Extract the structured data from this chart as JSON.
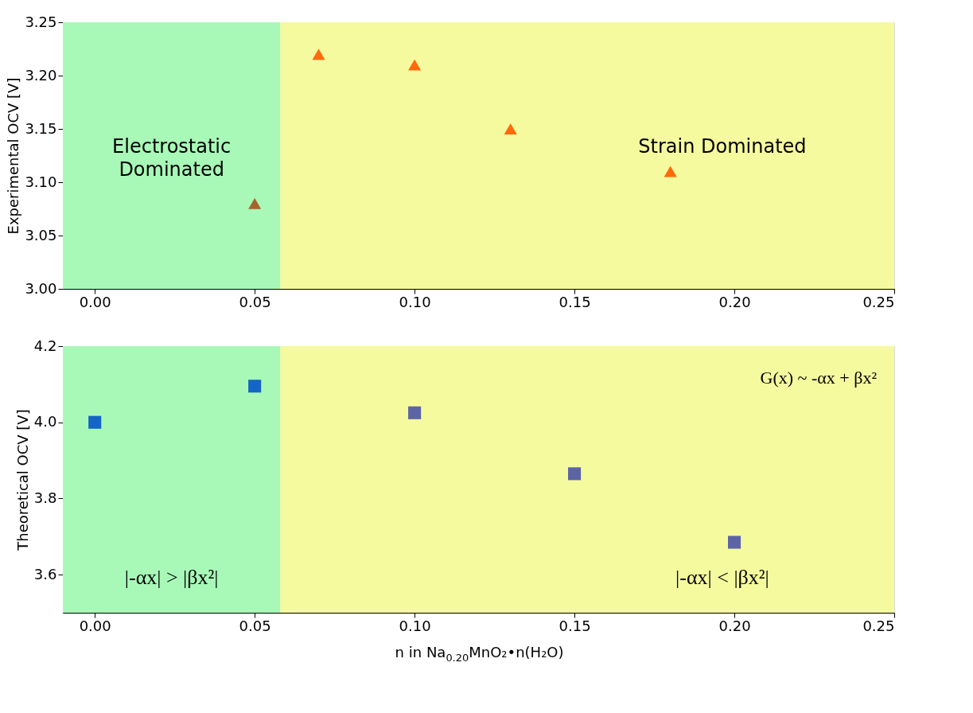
{
  "chart_data": [
    {
      "type": "scatter",
      "ylabel": "Experimental OCV [V]",
      "xlim": [
        -0.01,
        0.25
      ],
      "ylim": [
        3.0,
        3.25
      ],
      "xticks": [
        {
          "value": 0,
          "label": "0.00"
        },
        {
          "value": 0.05,
          "label": "0.05"
        },
        {
          "value": 0.1,
          "label": "0.10"
        },
        {
          "value": 0.15,
          "label": "0.15"
        },
        {
          "value": 0.2,
          "label": "0.20"
        },
        {
          "value": 0.25,
          "label": "0.25"
        }
      ],
      "yticks": [
        {
          "value": 3.0,
          "label": "3.00"
        },
        {
          "value": 3.05,
          "label": "3.05"
        },
        {
          "value": 3.1,
          "label": "3.10"
        },
        {
          "value": 3.15,
          "label": "3.15"
        },
        {
          "value": 3.2,
          "label": "3.20"
        },
        {
          "value": 3.25,
          "label": "3.25"
        }
      ],
      "marker": "triangle",
      "grid": false,
      "legend": false,
      "bands": [
        {
          "axis": "x",
          "from": -0.01,
          "to": 0.058,
          "label": "Electrostatic Dominated",
          "color": "#a8f9b8"
        },
        {
          "axis": "x",
          "from": 0.058,
          "to": 0.25,
          "label": "Strain Dominated",
          "color": "#f5fa9f"
        }
      ],
      "series": [
        {
          "x": [
            0.05,
            0.07,
            0.1,
            0.13,
            0.18
          ],
          "values": [
            3.08,
            3.22,
            3.21,
            3.15,
            3.11
          ],
          "colors": [
            "#a5652e",
            "#ff6a0b",
            "#ff6a0b",
            "#ff6a0b",
            "#ff6a0b"
          ]
        }
      ]
    },
    {
      "type": "scatter",
      "ylabel": "Theoretical OCV [V]",
      "xlabel": "n in Na$_{0.20}$MnO₂•n(H₂O)",
      "xlim": [
        -0.01,
        0.25
      ],
      "ylim": [
        3.5,
        4.2
      ],
      "xticks": [
        {
          "value": 0,
          "label": "0.00"
        },
        {
          "value": 0.05,
          "label": "0.05"
        },
        {
          "value": 0.1,
          "label": "0.10"
        },
        {
          "value": 0.15,
          "label": "0.15"
        },
        {
          "value": 0.2,
          "label": "0.20"
        },
        {
          "value": 0.25,
          "label": "0.25"
        }
      ],
      "yticks": [
        3.6,
        3.8,
        {
          "value": 4.0,
          "label": "4.0"
        },
        4.2
      ],
      "marker": "square",
      "grid": false,
      "legend": false,
      "annotations": [
        "G(x) ~ -αx + βx²"
      ],
      "bands": [
        {
          "axis": "x",
          "from": -0.01,
          "to": 0.058,
          "label": "|-αx| > |βx²|",
          "color": "#a8f9b8"
        },
        {
          "axis": "x",
          "from": 0.058,
          "to": 0.25,
          "label": "|-αx| < |βx²|",
          "color": "#f5fa9f"
        }
      ],
      "series": [
        {
          "x": [
            0,
            0.05,
            0.1,
            0.15,
            0.2
          ],
          "values": [
            4.0,
            4.095,
            4.025,
            3.865,
            3.685
          ],
          "colors": [
            "#1565c6",
            "#1565c6",
            "#5d64a6",
            "#5d64a6",
            "#5d64a6"
          ]
        }
      ]
    }
  ]
}
